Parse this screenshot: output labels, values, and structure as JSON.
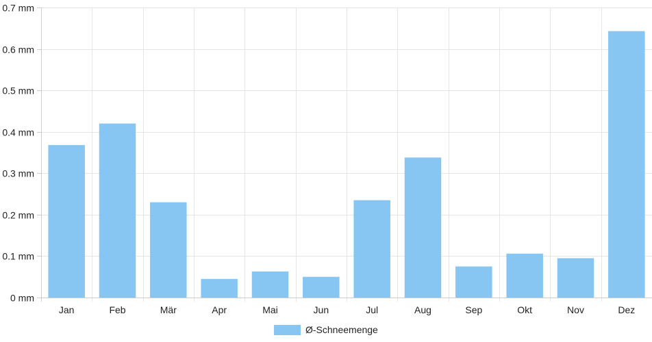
{
  "chart_data": {
    "type": "bar",
    "title": "",
    "xlabel": "",
    "ylabel": "",
    "categories": [
      "Jan",
      "Feb",
      "Mär",
      "Apr",
      "Mai",
      "Jun",
      "Jul",
      "Aug",
      "Sep",
      "Okt",
      "Nov",
      "Dez"
    ],
    "series": [
      {
        "name": "Ø-Schneemenge",
        "color": "#87c6f2",
        "values": [
          0.368,
          0.42,
          0.23,
          0.045,
          0.063,
          0.05,
          0.235,
          0.338,
          0.075,
          0.106,
          0.095,
          0.643
        ]
      }
    ],
    "ylim": [
      0,
      0.7
    ],
    "y_ticks": [
      "0 mm",
      "0.1 mm",
      "0.2 mm",
      "0.3 mm",
      "0.4 mm",
      "0.5 mm",
      "0.6 mm",
      "0.7 mm"
    ],
    "y_tick_values": [
      0,
      0.1,
      0.2,
      0.3,
      0.4,
      0.5,
      0.6,
      0.7
    ],
    "grid": true,
    "legend_position": "bottom-center",
    "grid_color": "#e5e5e5",
    "axis_color": "#cccccc"
  }
}
